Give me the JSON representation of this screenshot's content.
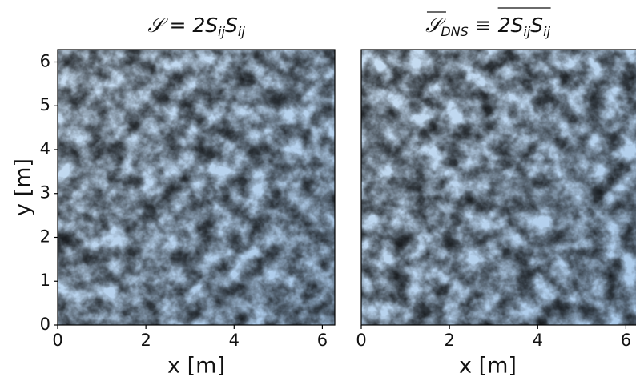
{
  "chart_data": [
    {
      "type": "heatmap",
      "title_parts": [
        "𝒮 = 2S",
        "ij",
        "S",
        "ij"
      ],
      "xlabel": "x [m]",
      "ylabel": "y [m]",
      "xlim": [
        0,
        6.283
      ],
      "ylim": [
        0,
        6.283
      ],
      "xticks": [
        0,
        2,
        4,
        6
      ],
      "yticks": [
        0,
        1,
        2,
        3,
        4,
        5,
        6
      ]
    },
    {
      "type": "heatmap",
      "title_parts": [
        "𝒮",
        "DNS",
        " ≡ ",
        "2S",
        "ij",
        "S",
        "ij"
      ],
      "xlabel": "x [m]",
      "xlim": [
        0,
        6.283
      ],
      "ylim": [
        0,
        6.283
      ],
      "xticks": [
        0,
        2,
        4,
        6
      ]
    }
  ]
}
